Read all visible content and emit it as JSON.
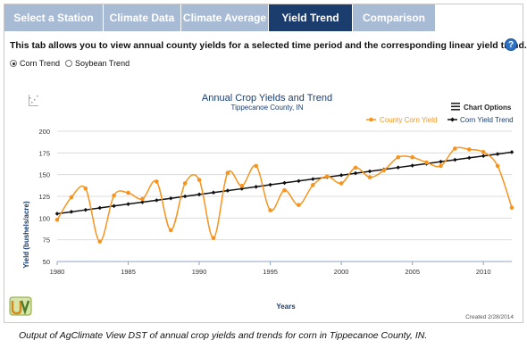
{
  "tabs": [
    {
      "label": "Select a Station",
      "active": false
    },
    {
      "label": "Climate Data",
      "active": false
    },
    {
      "label": "Climate Average",
      "active": false
    },
    {
      "label": "Yield Trend",
      "active": true
    },
    {
      "label": "Comparison",
      "active": false
    }
  ],
  "intro_text": "This tab allows you to view annual county yields for a selected time period and the corresponding linear yield trend.",
  "help_label": "?",
  "radios": [
    {
      "label": "Corn Trend",
      "selected": true
    },
    {
      "label": "Soybean Trend",
      "selected": false
    }
  ],
  "chart_options_label": "Chart Options",
  "created_label": "Created 2/28/2014",
  "caption": "Output of AgClimate View DST of annual crop yields and trends for corn in Tippecanoe County, IN.",
  "colors": {
    "tab_active": "#1b3d6e",
    "tab_inactive": "#a8bbd4",
    "yield_series": "#f7941d",
    "trend_series": "#111111",
    "title": "#1b3d6e"
  },
  "icons": [
    "zoom-reset-icon",
    "menu-icon",
    "help-icon",
    "logo-icon"
  ],
  "chart_data": {
    "type": "line",
    "title": "Annual Crop Yields and Trend",
    "subtitle": "Tippecanoe County, IN",
    "xlabel": "Years",
    "ylabel": "Yield (bushels/acre)",
    "xlim": [
      1980,
      2012
    ],
    "ylim": [
      50,
      200
    ],
    "xticks": [
      1980,
      1985,
      1990,
      1995,
      2000,
      2005,
      2010
    ],
    "yticks": [
      50,
      75,
      100,
      125,
      150,
      175,
      200
    ],
    "grid": "horizontal",
    "legend": "top-right",
    "x": [
      1980,
      1981,
      1982,
      1983,
      1984,
      1985,
      1986,
      1987,
      1988,
      1989,
      1990,
      1991,
      1992,
      1993,
      1994,
      1995,
      1996,
      1997,
      1998,
      1999,
      2000,
      2001,
      2002,
      2003,
      2004,
      2005,
      2006,
      2007,
      2008,
      2009,
      2010,
      2011,
      2012
    ],
    "series": [
      {
        "name": "County Corn Yield",
        "values": [
          98,
          124,
          134,
          73,
          126,
          129,
          122,
          142,
          86,
          140,
          144,
          77,
          152,
          137,
          160,
          109,
          132,
          115,
          138,
          148,
          140,
          158,
          147,
          155,
          170,
          170,
          164,
          160,
          180,
          179,
          176,
          160,
          112
        ]
      },
      {
        "name": "Corn Yield Trend",
        "values": [
          105.0,
          107.2,
          109.4,
          111.7,
          113.9,
          116.1,
          118.3,
          120.5,
          122.7,
          125.0,
          127.2,
          129.4,
          131.6,
          133.8,
          136.0,
          138.3,
          140.5,
          142.7,
          144.9,
          147.1,
          149.3,
          151.6,
          153.8,
          156.0,
          158.2,
          160.4,
          162.6,
          164.9,
          167.1,
          169.3,
          171.5,
          173.7,
          175.9
        ]
      }
    ]
  }
}
